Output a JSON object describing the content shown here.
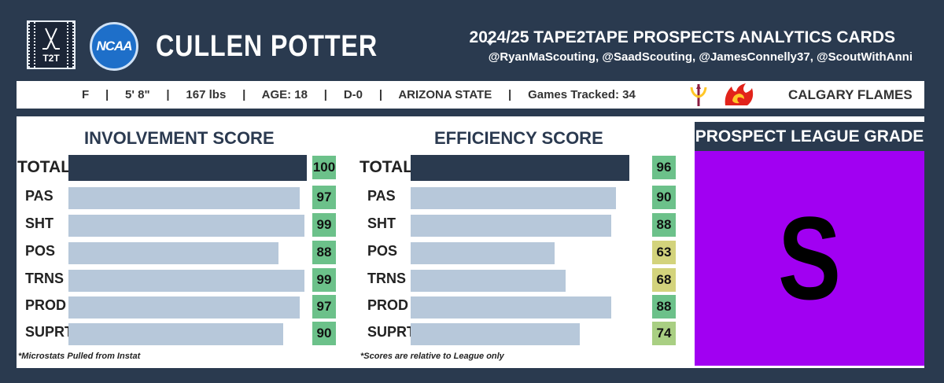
{
  "header": {
    "t2t_logo_text": "T2T",
    "ncaa_logo_text": "NCAA",
    "player_name": "CULLEN POTTER",
    "card_title": "2024/25 TAPE2TAPE PROSPECTS ANALYTICS CARDS",
    "credits": "@RyanMaScouting, @SaadScouting, @JamesConnelly37, @ScoutWithAnni"
  },
  "info_bar": {
    "text": "F     |     5' 8\"     |     167 lbs     |     AGE: 18     |     D-0     |     ARIZONA STATE     |     Games Tracked: 34",
    "nhl_team": "CALGARY FLAMES"
  },
  "colors": {
    "background": "#2a3a4f",
    "total_bar": "#2a3a4f",
    "sub_bar": "#b7c8da",
    "grade_panel": "#a100f2",
    "score_high": "#6cc18a",
    "score_mid": "#a9cf83",
    "score_low": "#d3d37c"
  },
  "chart_data": [
    {
      "type": "bar",
      "orientation": "horizontal",
      "title": "INVOLVEMENT SCORE",
      "categories": [
        "TOTAL",
        "PAS",
        "SHT",
        "POS",
        "TRNS",
        "PROD",
        "SUPRT"
      ],
      "values": [
        100,
        97,
        99,
        88,
        99,
        97,
        90
      ],
      "xlim": [
        0,
        100
      ],
      "footnote": "*Microstats Pulled from Instat"
    },
    {
      "type": "bar",
      "orientation": "horizontal",
      "title": "EFFICIENCY SCORE",
      "categories": [
        "TOTAL",
        "PAS",
        "SHT",
        "POS",
        "TRNS",
        "PROD",
        "SUPRT"
      ],
      "values": [
        96,
        90,
        88,
        63,
        68,
        88,
        74
      ],
      "xlim": [
        0,
        100
      ],
      "footnote": "*Scores are relative to League only"
    }
  ],
  "grade": {
    "title": "PROSPECT LEAGUE GRADE",
    "letter": "S"
  }
}
